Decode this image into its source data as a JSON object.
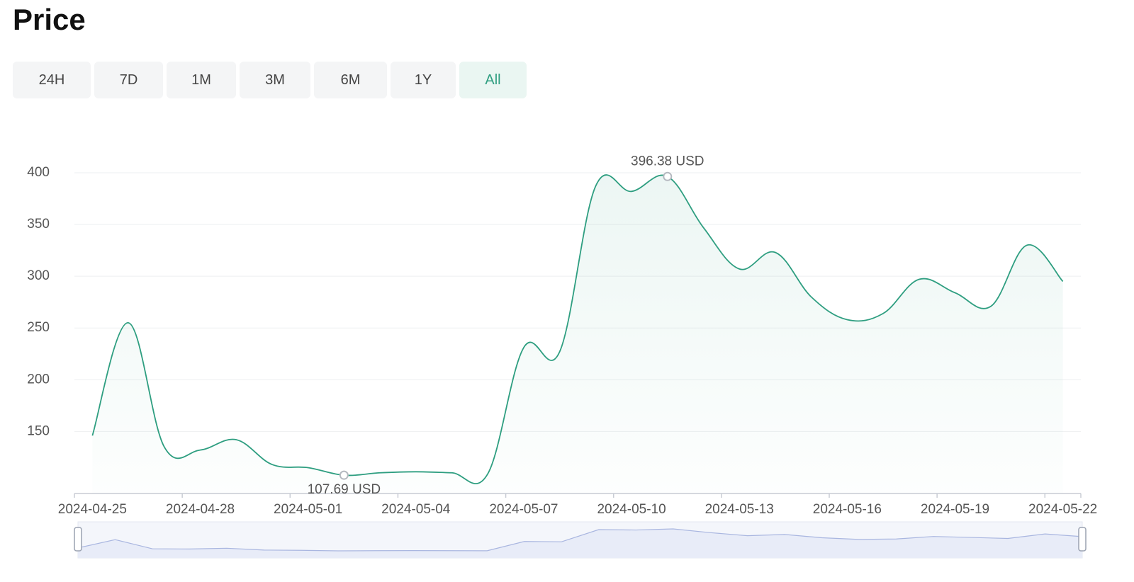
{
  "title": "Price",
  "range_buttons": [
    "24H",
    "7D",
    "1M",
    "3M",
    "6M",
    "1Y",
    "All"
  ],
  "active_range": "All",
  "chart_data": {
    "type": "line",
    "categories": [
      "2024-04-25",
      null,
      null,
      "2024-04-28",
      null,
      null,
      "2024-05-01",
      null,
      null,
      "2024-05-04",
      null,
      null,
      "2024-05-07",
      null,
      null,
      "2024-05-10",
      null,
      null,
      "2024-05-13",
      null,
      null,
      "2024-05-16",
      null,
      null,
      "2024-05-19",
      null,
      null,
      "2024-05-22"
    ],
    "values": [
      146,
      255,
      135,
      132,
      142,
      118,
      115,
      107.69,
      110,
      111,
      110,
      109,
      231,
      227,
      387,
      382,
      396.38,
      347,
      307,
      323,
      280,
      258,
      264,
      297,
      284,
      271,
      330,
      295
    ],
    "value_labels": [
      null,
      null,
      null,
      null,
      null,
      null,
      null,
      "107.69  USD",
      null,
      null,
      null,
      null,
      null,
      null,
      null,
      null,
      "396.38  USD",
      null,
      null,
      null,
      null,
      null,
      null,
      null,
      null,
      null,
      null,
      null
    ],
    "color": "#2e9e80",
    "ylim": [
      90,
      400
    ],
    "yticks": [
      150,
      200,
      250,
      300,
      350,
      400
    ],
    "grid": true
  }
}
